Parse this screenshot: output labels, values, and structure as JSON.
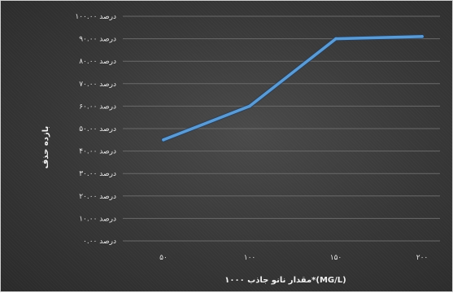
{
  "chart_data": {
    "type": "line",
    "categories": [
      "۵۰",
      "۱۰۰",
      "۱۵۰",
      "۲۰۰"
    ],
    "series": [
      {
        "values": [
          45,
          60,
          90,
          91
        ]
      }
    ],
    "y_ticks": [
      0,
      10,
      20,
      30,
      40,
      50,
      60,
      70,
      80,
      90,
      100
    ],
    "y_tick_labels": [
      "درصد ۰.۰۰",
      "درصد ۱۰.۰۰",
      "درصد ۲۰.۰۰",
      "درصد ۳۰.۰۰",
      "درصد ۴۰.۰۰",
      "درصد ۵۰.۰۰",
      "درصد ۶۰.۰۰",
      "درصد ۷۰.۰۰",
      "درصد ۸۰.۰۰",
      "درصد ۹۰.۰۰",
      "درصد ۱۰۰.۰۰"
    ],
    "ylim": [
      0,
      100
    ],
    "xlabel": "مقدار نانو جاذب ۱۰۰۰*(MG/L)",
    "ylabel": "بازده حذف",
    "grid": true,
    "legend": "none",
    "colors": {
      "line": "#5b9bd5",
      "background": "#3a3a3a",
      "grid": "#6a6a6a",
      "text": "#e6e6e6"
    }
  }
}
